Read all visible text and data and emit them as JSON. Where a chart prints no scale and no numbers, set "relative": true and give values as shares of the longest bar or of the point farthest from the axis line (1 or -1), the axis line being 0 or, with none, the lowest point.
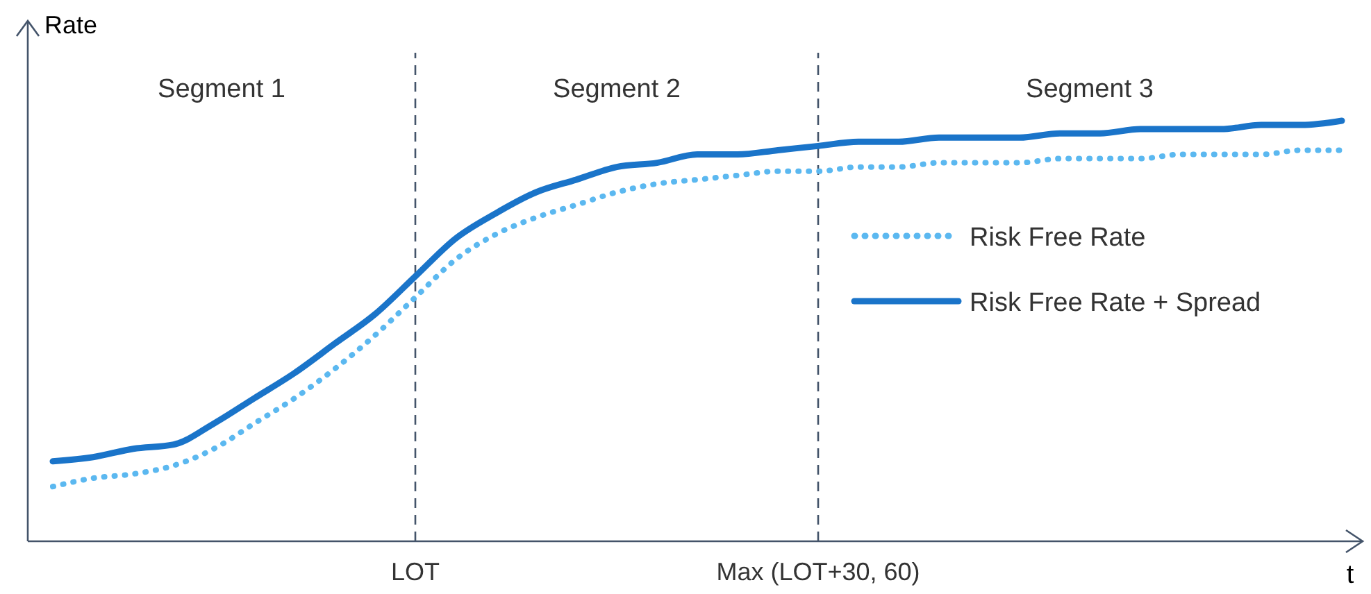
{
  "chart_data": {
    "type": "line",
    "relative": true,
    "xlabel": "t",
    "ylabel": "Rate",
    "categories": [
      null,
      null,
      null,
      null,
      null,
      null,
      null,
      null,
      null,
      "LOT",
      null,
      null,
      null,
      null,
      null,
      null,
      null,
      null,
      null,
      "Max (LOT+30, 60)",
      null,
      null,
      null,
      null,
      null,
      null,
      null,
      null,
      null,
      null,
      null,
      null,
      null
    ],
    "series": [
      {
        "name": "Risk Free Rate",
        "color": "#5bb8f0",
        "line_style": "dotted",
        "values": [
          0.13,
          0.15,
          0.16,
          0.18,
          0.22,
          0.28,
          0.34,
          0.41,
          0.49,
          0.58,
          0.67,
          0.73,
          0.77,
          0.8,
          0.83,
          0.85,
          0.86,
          0.87,
          0.88,
          0.88,
          0.89,
          0.89,
          0.9,
          0.9,
          0.9,
          0.91,
          0.91,
          0.91,
          0.92,
          0.92,
          0.92,
          0.93,
          0.93
        ]
      },
      {
        "name": "Risk Free Rate + Spread",
        "color": "#1a74c9",
        "line_style": "solid",
        "values": [
          0.19,
          0.2,
          0.22,
          0.23,
          0.28,
          0.34,
          0.4,
          0.47,
          0.54,
          0.63,
          0.72,
          0.78,
          0.83,
          0.86,
          0.89,
          0.9,
          0.92,
          0.92,
          0.93,
          0.94,
          0.95,
          0.95,
          0.96,
          0.96,
          0.96,
          0.97,
          0.97,
          0.98,
          0.98,
          0.98,
          0.99,
          0.99,
          1.0
        ]
      }
    ],
    "ref_lines": [
      {
        "axis": "x",
        "value": "LOT",
        "line_style": "dashed",
        "color": "#44546a"
      },
      {
        "axis": "x",
        "value": "Max (LOT+30, 60)",
        "line_style": "dashed",
        "color": "#44546a"
      }
    ],
    "annotations": [
      "Segment 1",
      "Segment 2",
      "Segment 3"
    ],
    "legend": "right"
  }
}
